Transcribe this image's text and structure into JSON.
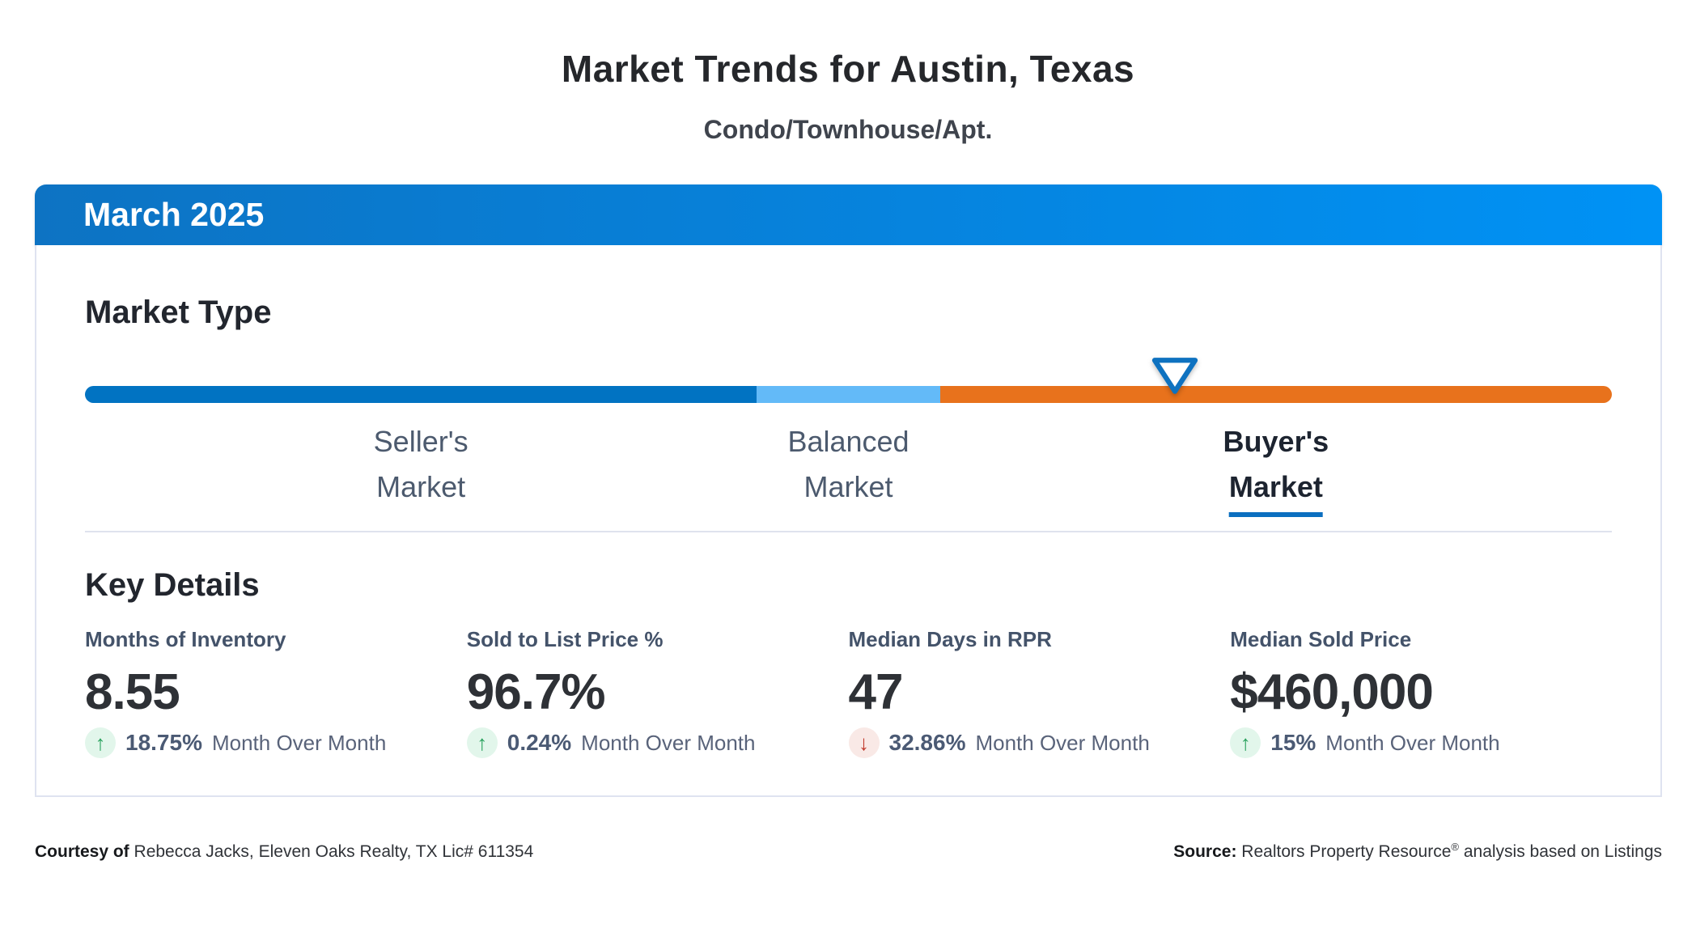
{
  "page": {
    "title": "Market Trends for Austin, Texas",
    "subtitle": "Condo/Townhouse/Apt."
  },
  "card": {
    "header": {
      "month_label": "March 2025"
    },
    "market_type": {
      "heading": "Market Type",
      "segments": [
        {
          "name": "sellers-market",
          "label_line1": "Seller's",
          "label_line2": "Market",
          "color": "#0173c2",
          "width_pct": 44,
          "active": false
        },
        {
          "name": "balanced-market",
          "label_line1": "Balanced",
          "label_line2": "Market",
          "color": "#63baf8",
          "width_pct": 12,
          "active": false
        },
        {
          "name": "buyers-market",
          "label_line1": "Buyer's",
          "label_line2": "Market",
          "color": "#e8721c",
          "width_pct": 44,
          "active": true
        }
      ],
      "active_segment": "Buyer's Market",
      "marker": {
        "position_pct": 71.4,
        "border_color": "#0e72c0",
        "fill_color": "#ffffff",
        "icon": "triangle-down-marker"
      }
    },
    "key_details": {
      "heading": "Key Details",
      "metrics": [
        {
          "label": "Months of Inventory",
          "value": "8.55",
          "change": "18.75%",
          "direction": "up",
          "icon": "arrow-up-icon",
          "period": "Month Over Month"
        },
        {
          "label": "Sold to List Price %",
          "value": "96.7%",
          "change": "0.24%",
          "direction": "up",
          "icon": "arrow-up-icon",
          "period": "Month Over Month"
        },
        {
          "label": "Median Days in RPR",
          "value": "47",
          "change": "32.86%",
          "direction": "down",
          "icon": "arrow-down-icon",
          "period": "Month Over Month"
        },
        {
          "label": "Median Sold Price",
          "value": "$460,000",
          "change": "15%",
          "direction": "up",
          "icon": "arrow-up-icon",
          "period": "Month Over Month"
        }
      ]
    }
  },
  "footer": {
    "courtesy_prefix": "Courtesy of",
    "courtesy_text": "Rebecca Jacks, Eleven Oaks Realty, TX Lic# 611354",
    "source_prefix": "Source:",
    "source_text_1": "Realtors Property Resource",
    "source_reg": "®",
    "source_text_2": "analysis based on Listings"
  },
  "colors": {
    "header_gradient_left": "#0d73c3",
    "header_gradient_right": "#0092f5",
    "up_green": "#27a15c",
    "up_green_bg": "#e2f6eb",
    "down_red": "#c13a2c",
    "down_red_bg": "#f9e9e6",
    "active_underline": "#0b6fc0",
    "card_border": "#dfe3f0"
  }
}
